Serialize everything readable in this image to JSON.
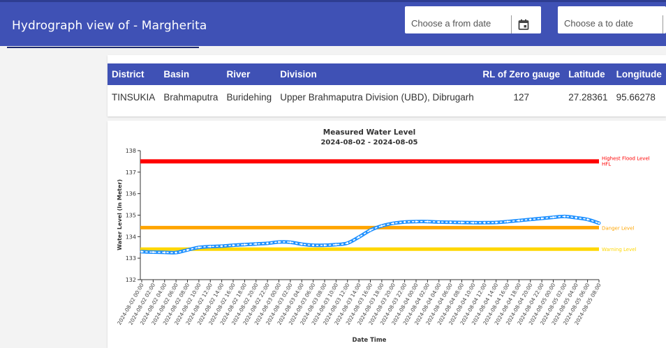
{
  "header": {
    "title": "Hydrograph view of - Margherita",
    "from_placeholder": "Choose a from date",
    "to_placeholder": "Choose a to date"
  },
  "info_table": {
    "columns": [
      "District",
      "Basin",
      "River",
      "Division",
      "RL of Zero gauge",
      "Latitude",
      "Longitude"
    ],
    "row": [
      "TINSUKIA",
      "Brahmaputra",
      "Buridehing",
      "Upper Brahmaputra Division (UBD), Dibrugarh",
      "127",
      "27.28361",
      "95.66278"
    ]
  },
  "colors": {
    "header_bg": "#3f51b5",
    "hfl": "#ff0000",
    "danger": "#ffa500",
    "warning": "#ffd700",
    "series": "#1e90ff"
  },
  "chart_data": {
    "type": "line",
    "title": "Measured Water Level",
    "subtitle": "2024-08-02 - 2024-08-05",
    "xlabel": "Date Time",
    "ylabel": "Water Level (In Meter)",
    "ylim": [
      132,
      138
    ],
    "yticks": [
      "132",
      "133",
      "134",
      "135",
      "136",
      "137",
      "138"
    ],
    "x": [
      "2024-08-02 00:00",
      "2024-08-02 02:00",
      "2024-08-02 04:00",
      "2024-08-02 06:00",
      "2024-08-02 08:00",
      "2024-08-02 10:00",
      "2024-08-02 12:00",
      "2024-08-02 14:00",
      "2024-08-02 16:00",
      "2024-08-02 18:00",
      "2024-08-02 20:00",
      "2024-08-02 22:00",
      "2024-08-03 00:00",
      "2024-08-03 02:00",
      "2024-08-03 04:00",
      "2024-08-03 06:00",
      "2024-08-03 08:00",
      "2024-08-03 10:00",
      "2024-08-03 12:00",
      "2024-08-03 14:00",
      "2024-08-03 16:00",
      "2024-08-03 18:00",
      "2024-08-03 20:00",
      "2024-08-03 22:00",
      "2024-08-04 00:00",
      "2024-08-04 02:00",
      "2024-08-04 04:00",
      "2024-08-04 06:00",
      "2024-08-04 08:00",
      "2024-08-04 10:00",
      "2024-08-04 12:00",
      "2024-08-04 14:00",
      "2024-08-04 16:00",
      "2024-08-04 18:00",
      "2024-08-04 20:00",
      "2024-08-04 22:00",
      "2024-08-05 00:00",
      "2024-08-05 02:00",
      "2024-08-05 04:00",
      "2024-08-05 06:00",
      "2024-08-05 08:00"
    ],
    "series": [
      {
        "values": [
          133.3,
          133.28,
          133.27,
          133.26,
          133.38,
          133.5,
          133.54,
          133.56,
          133.6,
          133.63,
          133.66,
          133.69,
          133.75,
          133.74,
          133.65,
          133.6,
          133.6,
          133.63,
          133.7,
          133.98,
          134.3,
          134.5,
          134.62,
          134.68,
          134.7,
          134.7,
          134.68,
          134.67,
          134.66,
          134.65,
          134.65,
          134.66,
          134.7,
          134.75,
          134.8,
          134.85,
          134.9,
          134.94,
          134.88,
          134.8,
          134.63
        ]
      }
    ],
    "reference_lines": [
      {
        "label": "Highest Flood Level",
        "label2": "HFL",
        "value": 137.5,
        "color": "#ff0000"
      },
      {
        "label": "Danger Level",
        "value": 134.42,
        "color": "#ffa500"
      },
      {
        "label": "Warning Level",
        "value": 133.42,
        "color": "#ffd700"
      }
    ],
    "grid": false
  }
}
